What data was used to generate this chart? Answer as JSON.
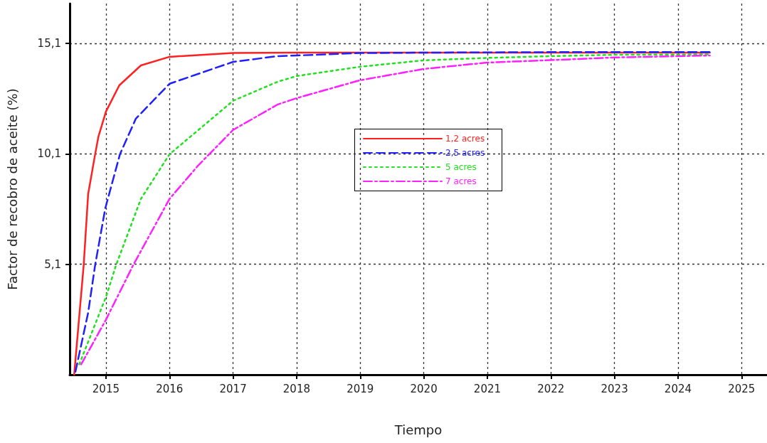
{
  "chart_data": {
    "type": "line",
    "xlabel": "Tiempo",
    "ylabel": "Factor de recobro de aceite (%)",
    "xlim": [
      2014.43,
      2025.4
    ],
    "xticks": [
      2015,
      2016,
      2017,
      2018,
      2019,
      2020,
      2021,
      2022,
      2023,
      2024,
      2025
    ],
    "ylim": [
      0.1,
      16.9
    ],
    "yticks": [
      {
        "value": 5.1,
        "label": "5,1"
      },
      {
        "value": 10.1,
        "label": "10,1"
      },
      {
        "value": 15.1,
        "label": "15,1"
      }
    ],
    "grid": true,
    "legend": "center",
    "marker": "none",
    "series": [
      {
        "name": "1,2 acres",
        "color": "#ff2020",
        "line_style": "solid",
        "x": [
          2014.5,
          2014.65,
          2014.72,
          2014.83,
          2014.88,
          2015,
          2015.21,
          2015.55,
          2016,
          2017,
          2018,
          2024.5
        ],
        "values": [
          0.1,
          5.07,
          8.28,
          10.08,
          10.86,
          12.01,
          13.2,
          14.1,
          14.49,
          14.66,
          14.68,
          14.68
        ]
      },
      {
        "name": "2,5 acres",
        "color": "#2020ff",
        "line_style": "dashed",
        "x": [
          2014.52,
          2014.72,
          2014.83,
          2014.99,
          2015.22,
          2015.47,
          2016,
          2017,
          2017.7,
          2018,
          2019,
          2020,
          2022,
          2024.5
        ],
        "values": [
          0.24,
          2.91,
          5.07,
          7.64,
          10.08,
          11.69,
          13.27,
          14.26,
          14.52,
          14.55,
          14.66,
          14.68,
          14.7,
          14.7
        ]
      },
      {
        "name": "5 acres",
        "color": "#20e020",
        "line_style": "dotted",
        "x": [
          2014.58,
          2015,
          2015.16,
          2015.55,
          2016,
          2017,
          2017.7,
          2018,
          2019,
          2020,
          2021,
          2022,
          2023,
          2024.5
        ],
        "values": [
          0.57,
          3.62,
          5.07,
          8.06,
          10.08,
          12.5,
          13.36,
          13.62,
          14.04,
          14.33,
          14.44,
          14.52,
          14.58,
          14.6
        ]
      },
      {
        "name": "7 acres",
        "color": "#ff20ff",
        "line_style": "dashdot",
        "x": [
          2014.61,
          2015,
          2015.43,
          2016,
          2016.45,
          2017,
          2017.7,
          2018,
          2019,
          2020,
          2021,
          2022,
          2023,
          2024.5
        ],
        "values": [
          0.57,
          2.59,
          5.07,
          8.06,
          9.57,
          11.18,
          12.33,
          12.62,
          13.43,
          13.94,
          14.23,
          14.34,
          14.46,
          14.55
        ]
      }
    ]
  }
}
